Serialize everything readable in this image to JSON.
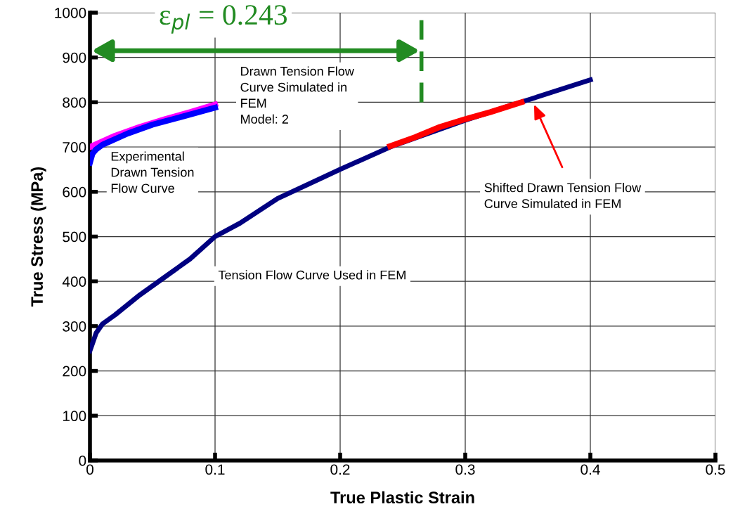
{
  "chart_data": {
    "type": "line",
    "xlabel": "True Plastic Strain",
    "ylabel": "True Stress (MPa)",
    "xlim": [
      0,
      0.5
    ],
    "xticks": [
      0,
      0.1,
      0.2,
      0.3,
      0.4,
      0.5
    ],
    "ylim": [
      0,
      1000
    ],
    "yticks": [
      0,
      100,
      200,
      300,
      400,
      500,
      600,
      700,
      800,
      900,
      1000
    ],
    "grid": true,
    "series": [
      {
        "color": "#000080",
        "x": [
          0,
          0.005,
          0.01,
          0.02,
          0.04,
          0.06,
          0.08,
          0.1,
          0.12,
          0.15,
          0.2,
          0.24,
          0.3,
          0.35,
          0.4
        ],
        "values": [
          245,
          285,
          305,
          325,
          370,
          410,
          450,
          500,
          530,
          585,
          650,
          700,
          760,
          805,
          850
        ]
      },
      {
        "color": "#ff00ff",
        "x": [
          0,
          0.02,
          0.04,
          0.06,
          0.08,
          0.1
        ],
        "values": [
          700,
          725,
          745,
          762,
          778,
          795
        ]
      },
      {
        "color": "#0000ff",
        "x": [
          0,
          0.002,
          0.005,
          0.01,
          0.03,
          0.05,
          0.07,
          0.1
        ],
        "values": [
          665,
          685,
          695,
          705,
          730,
          750,
          765,
          788
        ]
      },
      {
        "color": "#ff0000",
        "x": [
          0.24,
          0.26,
          0.28,
          0.3,
          0.32,
          0.345
        ],
        "values": [
          702,
          722,
          745,
          762,
          778,
          800
        ]
      }
    ],
    "ref_lines": [
      {
        "axis": "x",
        "value": 0.265,
        "color": "#228b22",
        "line_style": "dashed"
      }
    ],
    "annotations": [
      "ε$_{pl}$ = 0.243",
      "Drawn Tension Flow\nCurve Simulated in\nFEM\nModel: 2",
      "Experimental\nDrawn Tension\nFlow Curve",
      "Shifted Drawn Tension Flow\nCurve Simulated in FEM",
      "Tension Flow Curve Used in FEM"
    ]
  }
}
